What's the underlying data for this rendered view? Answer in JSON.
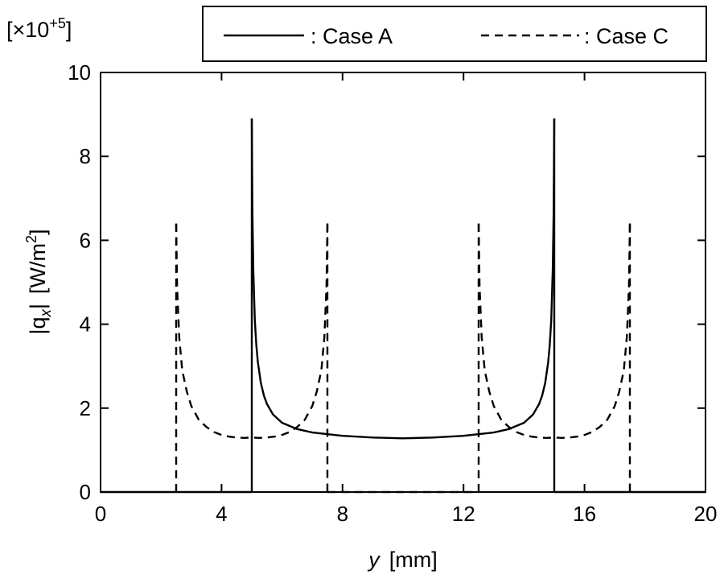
{
  "chart_data": {
    "type": "line",
    "xlabel": {
      "var": "y",
      "unit": "[mm]"
    },
    "ylabel": {
      "var": "|q",
      "sub": "x",
      "close": "|",
      "unit": "[W/m",
      "sup": "2",
      "unit_end": "]"
    },
    "y_multiplier": {
      "prefix": "[×10",
      "sup": "+5",
      "suffix": "]"
    },
    "xlim": [
      0,
      20
    ],
    "ylim": [
      0,
      10
    ],
    "xticks": [
      "0",
      "4",
      "8",
      "12",
      "16",
      "20"
    ],
    "yticks": [
      "0",
      "2",
      "4",
      "6",
      "8",
      "10"
    ],
    "legend": {
      "placement": "top"
    },
    "series": [
      {
        "name": ": Case A",
        "style": "solid",
        "segments": [
          {
            "x": [
              5.0,
              5.0
            ],
            "y": [
              0,
              8.9
            ]
          },
          {
            "x": [
              5.0,
              5.02,
              5.05,
              5.1,
              5.15,
              5.2,
              5.3,
              5.4,
              5.5,
              5.7,
              6.0,
              6.5,
              7.0,
              8.0,
              9.0,
              10.0,
              11.0,
              12.0,
              13.0,
              13.5,
              14.0,
              14.3,
              14.5,
              14.6,
              14.7,
              14.8,
              14.85,
              14.9,
              14.95,
              14.98,
              15.0
            ],
            "y": [
              8.9,
              6.7,
              5.3,
              4.1,
              3.5,
              3.1,
              2.6,
              2.3,
              2.1,
              1.85,
              1.65,
              1.5,
              1.42,
              1.34,
              1.3,
              1.28,
              1.3,
              1.34,
              1.42,
              1.5,
              1.65,
              1.85,
              2.1,
              2.3,
              2.6,
              3.1,
              3.5,
              4.1,
              5.3,
              6.7,
              8.9
            ]
          },
          {
            "x": [
              15.0,
              15.0
            ],
            "y": [
              8.9,
              0
            ]
          },
          {
            "x": [
              0,
              5.0
            ],
            "y": [
              0,
              0
            ]
          },
          {
            "x": [
              15.0,
              20.0
            ],
            "y": [
              0,
              0
            ]
          }
        ]
      },
      {
        "name": ": Case C",
        "style": "dashed",
        "segments": [
          {
            "x": [
              2.5,
              2.5
            ],
            "y": [
              0,
              6.4
            ]
          },
          {
            "x": [
              2.5,
              2.53,
              2.6,
              2.7,
              2.85,
              3.0,
              3.25,
              3.5,
              3.75,
              4.0,
              4.25,
              4.5,
              4.75,
              5.0,
              5.25,
              5.5,
              5.75,
              6.0,
              6.25,
              6.5,
              6.75,
              7.0,
              7.15,
              7.3,
              7.4,
              7.47,
              7.5
            ],
            "y": [
              6.4,
              4.9,
              3.7,
              2.9,
              2.4,
              2.05,
              1.72,
              1.55,
              1.43,
              1.36,
              1.32,
              1.3,
              1.29,
              1.3,
              1.29,
              1.3,
              1.32,
              1.36,
              1.43,
              1.55,
              1.72,
              2.05,
              2.4,
              2.9,
              3.7,
              4.9,
              6.4
            ]
          },
          {
            "x": [
              7.5,
              7.5
            ],
            "y": [
              6.4,
              0
            ]
          },
          {
            "x": [
              7.5,
              12.5
            ],
            "y": [
              0,
              0
            ]
          },
          {
            "x": [
              12.5,
              12.5
            ],
            "y": [
              0,
              6.4
            ]
          },
          {
            "x": [
              12.5,
              12.53,
              12.6,
              12.7,
              12.85,
              13.0,
              13.25,
              13.5,
              13.75,
              14.0,
              14.25,
              14.5,
              14.75,
              15.0,
              15.25,
              15.5,
              15.75,
              16.0,
              16.25,
              16.5,
              16.75,
              17.0,
              17.15,
              17.3,
              17.4,
              17.47,
              17.5
            ],
            "y": [
              6.4,
              4.9,
              3.7,
              2.9,
              2.4,
              2.05,
              1.72,
              1.55,
              1.43,
              1.36,
              1.32,
              1.3,
              1.29,
              1.3,
              1.29,
              1.3,
              1.32,
              1.36,
              1.43,
              1.55,
              1.72,
              2.05,
              2.4,
              2.9,
              3.7,
              4.9,
              6.4
            ]
          },
          {
            "x": [
              17.5,
              17.5
            ],
            "y": [
              6.4,
              0
            ]
          }
        ]
      }
    ]
  }
}
